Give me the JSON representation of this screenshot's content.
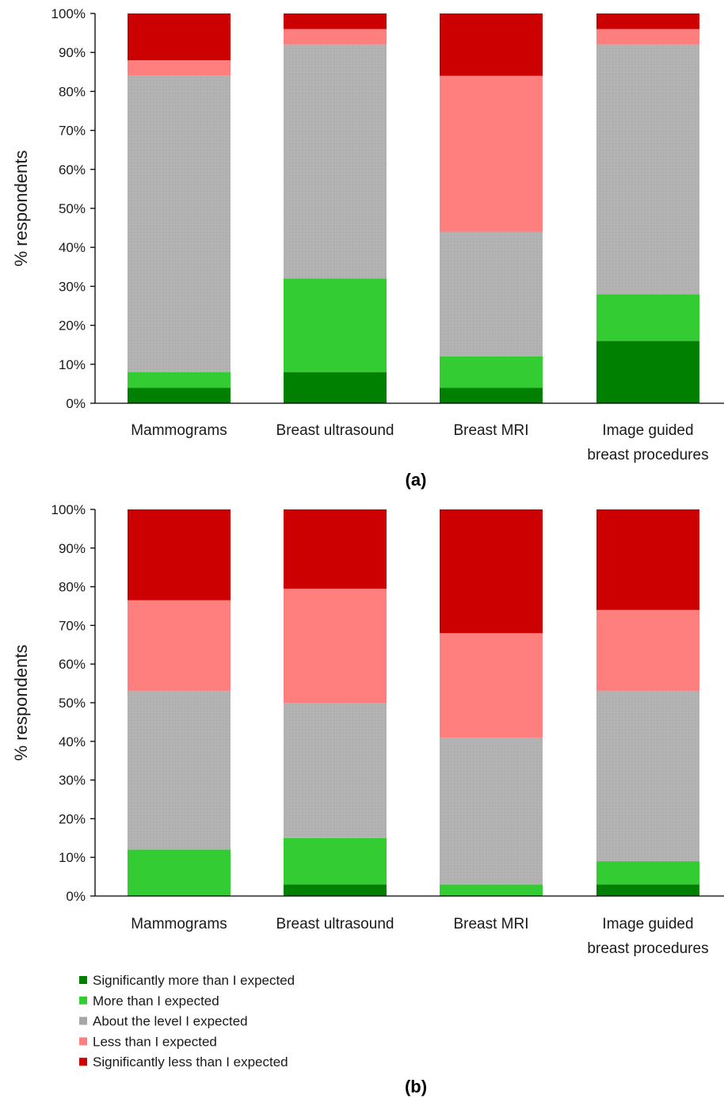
{
  "colors": {
    "Significantly more than I expected": "#008000",
    "More than I expected": "#33cc33",
    "About the level I expected": "#b3b3b3",
    "Less than I expected": "#ff7f7f",
    "Significantly less than I expected": "#cc0000"
  },
  "legend": {
    "items": [
      "Significantly more than I expected",
      "More than I expected",
      "About the level I expected",
      "Less than I expected",
      "Significantly less than I expected"
    ],
    "placement": "bottom-left"
  },
  "chart_data": [
    {
      "type": "bar",
      "stacked": true,
      "panel_label": "(a)",
      "ylabel": "% respondents",
      "ylim": [
        0,
        100
      ],
      "yticks": [
        "0%",
        "10%",
        "20%",
        "30%",
        "40%",
        "50%",
        "60%",
        "70%",
        "80%",
        "90%",
        "100%"
      ],
      "categories": [
        [
          "Mammograms"
        ],
        [
          "Breast ultrasound"
        ],
        [
          "Breast MRI"
        ],
        [
          "Image guided",
          "breast procedures"
        ]
      ],
      "series": [
        {
          "name": "Significantly more than I expected",
          "values": [
            4,
            8,
            4,
            16
          ]
        },
        {
          "name": "More than I expected",
          "values": [
            4,
            24,
            8,
            12
          ]
        },
        {
          "name": "About the level I expected",
          "values": [
            76,
            60,
            32,
            64
          ]
        },
        {
          "name": "Less than I expected",
          "values": [
            4,
            4,
            40,
            4
          ]
        },
        {
          "name": "Significantly less than I expected",
          "values": [
            12,
            4,
            16,
            4
          ]
        }
      ]
    },
    {
      "type": "bar",
      "stacked": true,
      "panel_label": "(b)",
      "ylabel": "% respondents",
      "ylim": [
        0,
        100
      ],
      "yticks": [
        "0%",
        "10%",
        "20%",
        "30%",
        "40%",
        "50%",
        "60%",
        "70%",
        "80%",
        "90%",
        "100%"
      ],
      "categories": [
        [
          "Mammograms"
        ],
        [
          "Breast ultrasound"
        ],
        [
          "Breast MRI"
        ],
        [
          "Image guided",
          "breast procedures"
        ]
      ],
      "series": [
        {
          "name": "Significantly more than I expected",
          "values": [
            0,
            3,
            0,
            3
          ]
        },
        {
          "name": "More than I expected",
          "values": [
            12,
            12,
            3,
            6
          ]
        },
        {
          "name": "About the level I expected",
          "values": [
            41,
            35,
            38,
            44
          ]
        },
        {
          "name": "Less than I expected",
          "values": [
            23.5,
            29.5,
            27,
            21
          ]
        },
        {
          "name": "Significantly less than I expected",
          "values": [
            23.5,
            20.5,
            32,
            26
          ]
        }
      ]
    }
  ]
}
